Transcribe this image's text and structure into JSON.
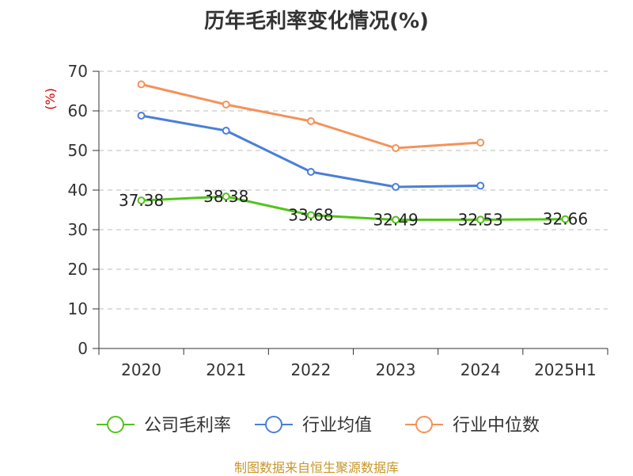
{
  "title": "历年毛利率变化情况(%)",
  "source": "制图数据来自恒生聚源数据库",
  "chart_data": {
    "type": "line",
    "title": "历年毛利率变化情况(%)",
    "xlabel": "",
    "ylabel": "(%)",
    "categories": [
      "2020",
      "2021",
      "2022",
      "2023",
      "2024",
      "2025H1"
    ],
    "ylim": [
      0,
      70
    ],
    "yticks": [
      0,
      10,
      20,
      30,
      40,
      50,
      60,
      70
    ],
    "grid": true,
    "legend_position": "bottom",
    "series": [
      {
        "name": "公司毛利率",
        "color": "#52c41a",
        "values": [
          37.38,
          38.38,
          33.68,
          32.49,
          32.53,
          32.66
        ],
        "labels": [
          "37.38",
          "38.38",
          "33.68",
          "32.49",
          "32.53",
          "32.66"
        ]
      },
      {
        "name": "行业均值",
        "color": "#4a7fd8",
        "values": [
          58.8,
          55.0,
          44.6,
          40.8,
          41.1,
          null
        ]
      },
      {
        "name": "行业中位数",
        "color": "#f4925a",
        "values": [
          66.7,
          61.6,
          57.4,
          50.6,
          52.0,
          null
        ]
      }
    ]
  }
}
